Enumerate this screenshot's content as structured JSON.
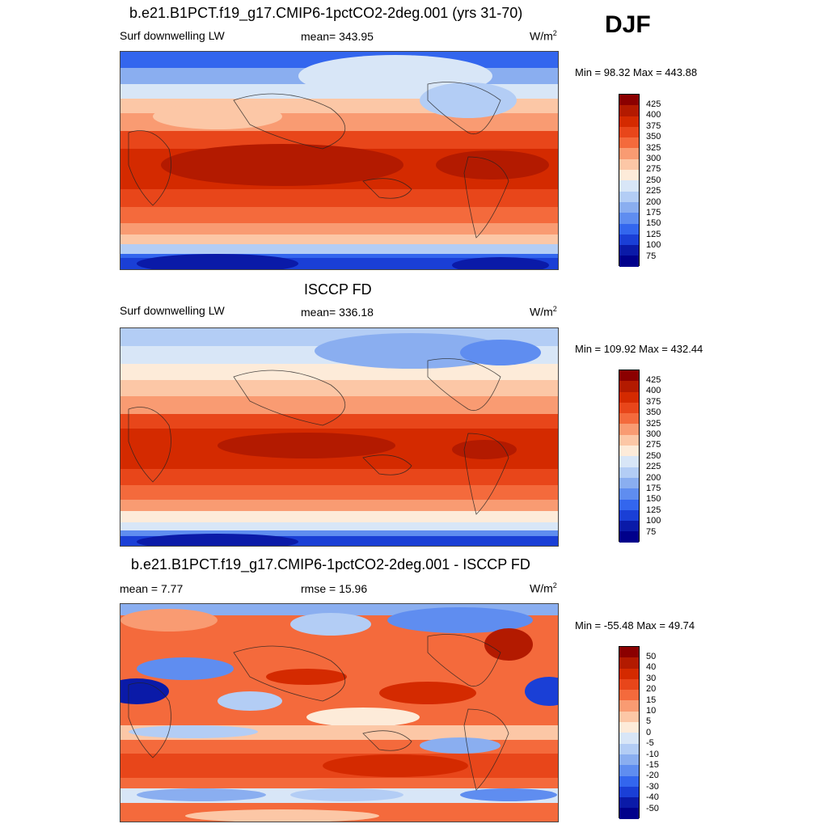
{
  "season": "DJF",
  "panels": [
    {
      "title": "b.e21.B1PCT.f19_g17.CMIP6-1pctCO2-2deg.001 (yrs 31-70)",
      "left_label": "Surf downwelling LW",
      "center_label": "mean= 343.95",
      "units": "W/m",
      "units_sup": "2",
      "minmax": "Min =  98.32 Max = 443.88",
      "colorbar": {
        "labels": [
          "425",
          "400",
          "375",
          "350",
          "325",
          "300",
          "275",
          "250",
          "225",
          "200",
          "175",
          "150",
          "125",
          "100",
          "75"
        ],
        "colors": [
          "#8b0000",
          "#b31a00",
          "#d42a00",
          "#e8461a",
          "#f46a3c",
          "#f99b72",
          "#fcc7a6",
          "#fdebd9",
          "#d8e6f7",
          "#b3cdf5",
          "#8aaef0",
          "#5f8df0",
          "#3366ee",
          "#1a3fd6",
          "#0a1aa8",
          "#00008b"
        ]
      }
    },
    {
      "title": "ISCCP FD",
      "left_label": "Surf downwelling LW",
      "center_label": "mean= 336.18",
      "units": "W/m",
      "units_sup": "2",
      "minmax": "Min = 109.92 Max = 432.44",
      "colorbar": {
        "labels": [
          "425",
          "400",
          "375",
          "350",
          "325",
          "300",
          "275",
          "250",
          "225",
          "200",
          "175",
          "150",
          "125",
          "100",
          "75"
        ],
        "colors": [
          "#8b0000",
          "#b31a00",
          "#d42a00",
          "#e8461a",
          "#f46a3c",
          "#f99b72",
          "#fcc7a6",
          "#fdebd9",
          "#d8e6f7",
          "#b3cdf5",
          "#8aaef0",
          "#5f8df0",
          "#3366ee",
          "#1a3fd6",
          "#0a1aa8",
          "#00008b"
        ]
      }
    },
    {
      "title": "b.e21.B1PCT.f19_g17.CMIP6-1pctCO2-2deg.001 - ISCCP FD",
      "left_label": "mean =   7.77",
      "center_label": "rmse =  15.96",
      "units": "W/m",
      "units_sup": "2",
      "minmax": "Min = -55.48 Max =  49.74",
      "colorbar": {
        "labels": [
          "50",
          "40",
          "30",
          "20",
          "15",
          "10",
          "5",
          "0",
          "-5",
          "-10",
          "-15",
          "-20",
          "-30",
          "-40",
          "-50"
        ],
        "colors": [
          "#8b0000",
          "#b31a00",
          "#d42a00",
          "#e8461a",
          "#f46a3c",
          "#f99b72",
          "#fcc7a6",
          "#fdebd9",
          "#d8e6f7",
          "#b3cdf5",
          "#8aaef0",
          "#5f8df0",
          "#3366ee",
          "#1a3fd6",
          "#0a1aa8",
          "#00008b"
        ]
      }
    }
  ]
}
